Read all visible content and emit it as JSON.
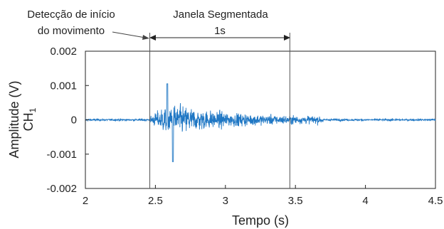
{
  "chart_data": {
    "type": "line",
    "xlabel": "Tempo (s)",
    "ylabel_line1": "Amplitude (V)",
    "ylabel_line2_main": "CH",
    "ylabel_line2_sub": "1",
    "xlim": [
      2,
      4.5
    ],
    "ylim": [
      -0.002,
      0.002
    ],
    "xticks": [
      2,
      2.5,
      3,
      3.5,
      4,
      4.5
    ],
    "xtick_labels": [
      "2",
      "2.5",
      "3",
      "3.5",
      "4",
      "4.5"
    ],
    "yticks": [
      0.002,
      0.001,
      0,
      -0.001,
      -0.002
    ],
    "ytick_labels": [
      "0.002",
      "0.001",
      "0",
      "-0.001",
      "-0.002"
    ],
    "grid": false,
    "series": [
      {
        "color": "#1f77c4",
        "signal_profile": {
          "baseline_amplitude": 3e-05,
          "onset_time": 2.46,
          "peak_positive": 0.00105,
          "peak_negative": -0.00122,
          "peak_time": 2.6,
          "decay_end_time": 3.7
        }
      }
    ],
    "vertical_markers": [
      {
        "x": 2.46,
        "color": "#555555"
      },
      {
        "x": 3.46,
        "color": "#555555"
      }
    ],
    "annotations": {
      "onset_label_line1": "Detecção de início",
      "onset_label_line2": "do movimento",
      "window_label": "Janela Segmentada",
      "window_span_label": "1s"
    }
  }
}
